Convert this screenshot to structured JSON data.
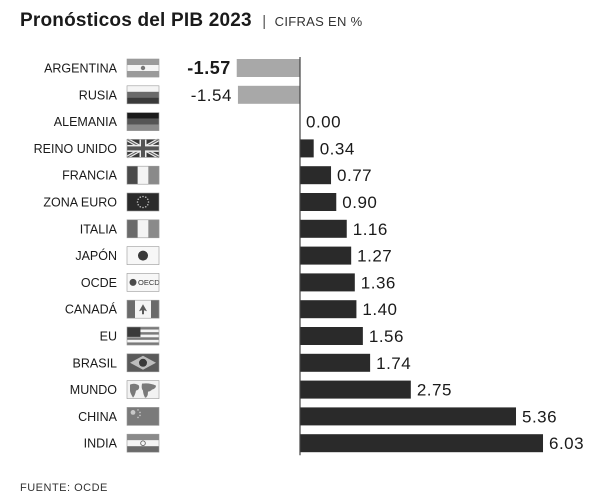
{
  "header": {
    "title": "Pronósticos del PIB 2023",
    "separator": "|",
    "subtitle": "CIFRAS EN %"
  },
  "source": "FUENTE: OCDE",
  "colors": {
    "negative_bar": "#a8a8a8",
    "positive_bar": "#2a2a2a",
    "axis": "#444444",
    "text": "#1a1a1a"
  },
  "chart_data": {
    "type": "bar",
    "orientation": "horizontal",
    "title": "Pronósticos del PIB 2023",
    "subtitle": "CIFRAS EN %",
    "categories": [
      "ARGENTINA",
      "RUSIA",
      "ALEMANIA",
      "REINO UNIDO",
      "FRANCIA",
      "ZONA EURO",
      "ITALIA",
      "JAPÓN",
      "OCDE",
      "CANADÁ",
      "EU",
      "BRASIL",
      "MUNDO",
      "CHINA",
      "INDIA"
    ],
    "value_labels": [
      "-1.57",
      "-1.54",
      "0.00",
      "0.34",
      "0.77",
      "0.90",
      "1.16",
      "1.27",
      "1.36",
      "1.40",
      "1.56",
      "1.74",
      "2.75",
      "5.36",
      "6.03"
    ],
    "values": [
      -1.57,
      -1.54,
      0.0,
      0.34,
      0.77,
      0.9,
      1.16,
      1.27,
      1.36,
      1.4,
      1.56,
      1.74,
      2.75,
      5.36,
      6.03
    ],
    "flags": [
      "argentina-flag-icon",
      "russia-flag-icon",
      "germany-flag-icon",
      "uk-flag-icon",
      "france-flag-icon",
      "eu-flag-icon",
      "italy-flag-icon",
      "japan-flag-icon",
      "oecd-flag-icon",
      "canada-flag-icon",
      "usa-flag-icon",
      "brazil-flag-icon",
      "world-flag-icon",
      "china-flag-icon",
      "india-flag-icon"
    ],
    "flag_texts": {
      "oecd": "OECD"
    },
    "xlim": [
      -1.57,
      6.03
    ],
    "grid": false,
    "legend": "none"
  }
}
